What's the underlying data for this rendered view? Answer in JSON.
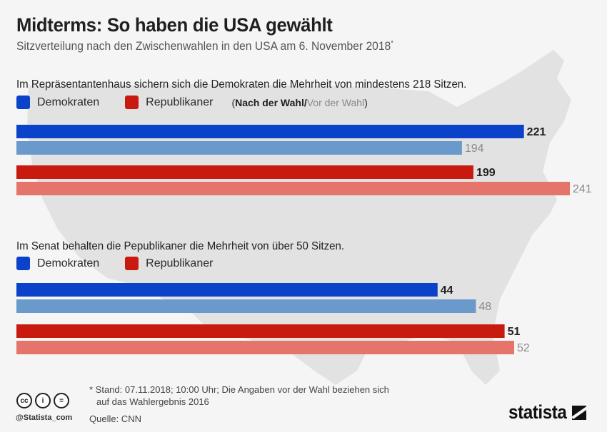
{
  "header": {
    "title": "Midterms: So haben die USA gewählt",
    "subtitle": "Sitzverteilung nach den Zwischenwahlen in den USA am 6. November 2018",
    "subtitle_marker": "*"
  },
  "house": {
    "heading": "Im Repräsentantenhaus sichern sich die Demokraten die Mehrheit von mindestens 218 Sitzen.",
    "legend": {
      "dem": "Demokraten",
      "rep": "Republikaner",
      "note_open": "(",
      "note_after": "Nach der Wahl",
      "note_slash": "/",
      "note_before": "Vor der Wahl",
      "note_close": ")"
    }
  },
  "senate": {
    "heading": "Im Senat behalten die Pepublikaner die Mehrheit von über 50 Sitzen.",
    "legend": {
      "dem": "Demokraten",
      "rep": "Republikaner"
    }
  },
  "colors": {
    "dem_after": "#0a42c9",
    "dem_before": "#6a99cb",
    "rep_after": "#c91a10",
    "rep_before": "#e5756b",
    "label_after": "#1f1f1f",
    "label_before": "#8a8a8a"
  },
  "chart_data": [
    {
      "type": "bar",
      "orientation": "horizontal",
      "title": "Im Repräsentantenhaus sichern sich die Demokraten die Mehrheit von mindestens 218 Sitzen.",
      "categories": [
        "Demokraten",
        "Republikaner"
      ],
      "series": [
        {
          "name": "Nach der Wahl",
          "values": [
            221,
            199
          ]
        },
        {
          "name": "Vor der Wahl",
          "values": [
            194,
            241
          ]
        }
      ],
      "xlim": [
        0,
        241
      ],
      "grid": false,
      "legend": "top-left"
    },
    {
      "type": "bar",
      "orientation": "horizontal",
      "title": "Im Senat behalten die Pepublikaner die Mehrheit von über 50 Sitzen.",
      "categories": [
        "Demokraten",
        "Republikaner"
      ],
      "series": [
        {
          "name": "Nach der Wahl",
          "values": [
            44,
            51
          ]
        },
        {
          "name": "Vor der Wahl",
          "values": [
            48,
            52
          ]
        }
      ],
      "xlim": [
        0,
        52
      ],
      "grid": false,
      "legend": "top-left"
    }
  ],
  "footer": {
    "note_line1": "* Stand: 07.11.2018; 10:00 Uhr; Die Angaben vor der Wahl beziehen sich",
    "note_line2": "auf das Wahlergebnis 2016",
    "source": "Quelle: CNN",
    "handle": "@Statista_com",
    "cc_icons": [
      "cc",
      "by",
      "nd"
    ],
    "cc_glyphs": [
      "cc",
      "i",
      "="
    ],
    "brand": "statista"
  }
}
